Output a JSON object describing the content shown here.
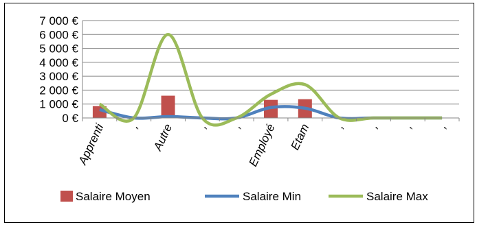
{
  "chart_data": {
    "type": "bar",
    "title": "",
    "xlabel": "",
    "ylabel": "",
    "ylim": [
      0,
      7000
    ],
    "yticks": [
      0,
      1000,
      2000,
      3000,
      4000,
      5000,
      6000,
      7000
    ],
    "ytick_labels": [
      "0 €",
      "1 000 €",
      "2 000 €",
      "3 000 €",
      "4 000 €",
      "5 000 €",
      "6 000 €",
      "7 000 €"
    ],
    "grid": true,
    "legend_position": "bottom",
    "categories": [
      "Apprenti",
      ",",
      "Autre",
      ",",
      ",",
      "Employé",
      "Etam",
      ",",
      ",",
      ",",
      ","
    ],
    "series": [
      {
        "name": "Salaire Moyen",
        "kind": "bar",
        "color": "#C0504D",
        "values": [
          850,
          0,
          1600,
          0,
          0,
          1300,
          1350,
          0,
          0,
          0,
          0
        ]
      },
      {
        "name": "Salaire Min",
        "kind": "smooth-line",
        "color": "#4F81BD",
        "values": [
          600,
          0,
          100,
          0,
          0,
          750,
          700,
          0,
          0,
          0,
          0
        ]
      },
      {
        "name": "Salaire Max",
        "kind": "smooth-line",
        "color": "#9BBB59",
        "values": [
          1000,
          0,
          6000,
          0,
          0,
          1700,
          2400,
          0,
          0,
          0,
          0
        ]
      }
    ]
  }
}
